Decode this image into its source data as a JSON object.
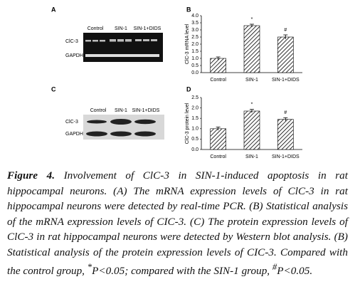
{
  "panels": {
    "A": {
      "label": "A",
      "columns": [
        "Control",
        "SIN-1",
        "SIN-1+DIDS"
      ],
      "rows": [
        "ClC-3",
        "GAPDH"
      ]
    },
    "B": {
      "label": "B"
    },
    "C": {
      "label": "C",
      "columns": [
        "Control",
        "SIN-1",
        "SIN-1+DIDS"
      ],
      "rows": [
        "ClC-3",
        "GAPDH"
      ]
    },
    "D": {
      "label": "D"
    }
  },
  "chart_data": [
    {
      "type": "bar",
      "y_label": "ClC-3 mRNA level",
      "categories": [
        "Control",
        "SIN-1",
        "SIN-1+DIDS"
      ],
      "values": [
        1.0,
        3.3,
        2.5
      ],
      "errors": [
        0.1,
        0.1,
        0.15
      ],
      "annotations": [
        null,
        "*",
        "#"
      ],
      "color": "#000000",
      "ylim": [
        0,
        4
      ],
      "yticks": [
        {
          "value": 0,
          "label": "0.0"
        },
        {
          "value": 0.5,
          "label": "0.5"
        },
        {
          "value": 1,
          "label": "1.0"
        },
        {
          "value": 1.5,
          "label": "1.5"
        },
        {
          "value": 2,
          "label": "2.0"
        },
        {
          "value": 2.5,
          "label": "2.5"
        },
        {
          "value": 3,
          "label": "3.0"
        },
        {
          "value": 3.5,
          "label": "3.5"
        },
        {
          "value": 4,
          "label": "4.0"
        }
      ]
    },
    {
      "type": "bar",
      "y_label": "ClC-3 protein level",
      "categories": [
        "Control",
        "SIN-1",
        "SIN-1+DIDS"
      ],
      "values": [
        1.0,
        1.85,
        1.45
      ],
      "errors": [
        0.08,
        0.08,
        0.08
      ],
      "annotations": [
        null,
        "*",
        "#"
      ],
      "color": "#000000",
      "ylim": [
        0,
        2.5
      ],
      "yticks": [
        {
          "value": 0,
          "label": "0.0"
        },
        {
          "value": 0.5,
          "label": "0.5"
        },
        {
          "value": 1,
          "label": "1.0"
        },
        {
          "value": 1.5,
          "label": "1.5"
        },
        {
          "value": 2,
          "label": "2.0"
        },
        {
          "value": 2.5,
          "label": "2.5"
        }
      ]
    }
  ],
  "caption": {
    "label": "Figure 4.",
    "text": " Involvement of ClC-3 in SIN-1-induced apoptosis in rat hippocampal neurons. (A) The mRNA expression levels of ClC-3 in rat hippocampal neurons were detected by real-time PCR. (B) Statistical analysis of the mRNA expression levels of CIC-3. (C) The protein expression levels of ClC-3 in rat hippocampal neurons were detected by Western blot analysis. (B) Statistical analysis of the protein expression levels of CIC-3. Compared with the control group, ",
    "sup1": "*",
    "text2": "P<0.05; compared with the SIN-1 group, ",
    "sup2": "#",
    "text3": "P<0.05."
  }
}
